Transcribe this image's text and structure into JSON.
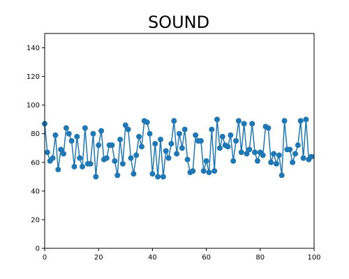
{
  "chart_data": {
    "type": "line",
    "title": "SOUND",
    "xlabel": "",
    "ylabel": "",
    "xlim": [
      0,
      100
    ],
    "ylim": [
      0,
      150
    ],
    "x_ticks": [
      0,
      20,
      40,
      60,
      80,
      100
    ],
    "y_ticks": [
      0,
      20,
      40,
      60,
      80,
      100,
      120,
      140
    ],
    "grid": false,
    "legend": false,
    "marker": "circle",
    "series": [
      {
        "color": "#1f77b4",
        "x": [
          0,
          1,
          2,
          3,
          4,
          5,
          6,
          7,
          8,
          9,
          10,
          11,
          12,
          13,
          14,
          15,
          16,
          17,
          18,
          19,
          20,
          21,
          22,
          23,
          24,
          25,
          26,
          27,
          28,
          29,
          30,
          31,
          32,
          33,
          34,
          35,
          36,
          37,
          38,
          39,
          40,
          41,
          42,
          43,
          44,
          45,
          46,
          47,
          48,
          49,
          50,
          51,
          52,
          53,
          54,
          55,
          56,
          57,
          58,
          59,
          60,
          61,
          62,
          63,
          64,
          65,
          66,
          67,
          68,
          69,
          70,
          71,
          72,
          73,
          74,
          75,
          76,
          77,
          78,
          79,
          80,
          81,
          82,
          83,
          84,
          85,
          86,
          87,
          88,
          89,
          90,
          91,
          92,
          93,
          94,
          95,
          96,
          97,
          98,
          99
        ],
        "y": [
          87,
          67,
          61,
          63,
          79,
          55,
          69,
          66,
          84,
          80,
          75,
          57,
          78,
          63,
          57,
          84,
          59,
          59,
          80,
          50,
          72,
          82,
          62,
          63,
          72,
          72,
          61,
          51,
          76,
          59,
          86,
          83,
          63,
          52,
          65,
          78,
          71,
          89,
          88,
          80,
          52,
          73,
          50,
          76,
          50,
          68,
          63,
          73,
          89,
          66,
          80,
          70,
          83,
          62,
          53,
          54,
          79,
          75,
          75,
          54,
          61,
          53,
          83,
          54,
          90,
          70,
          78,
          72,
          71,
          79,
          61,
          75,
          89,
          67,
          87,
          66,
          69,
          87,
          67,
          61,
          67,
          65,
          85,
          84,
          60,
          66,
          59,
          65,
          51,
          89,
          69,
          69,
          60,
          66,
          72,
          89,
          63,
          90,
          62,
          64
        ]
      }
    ]
  }
}
